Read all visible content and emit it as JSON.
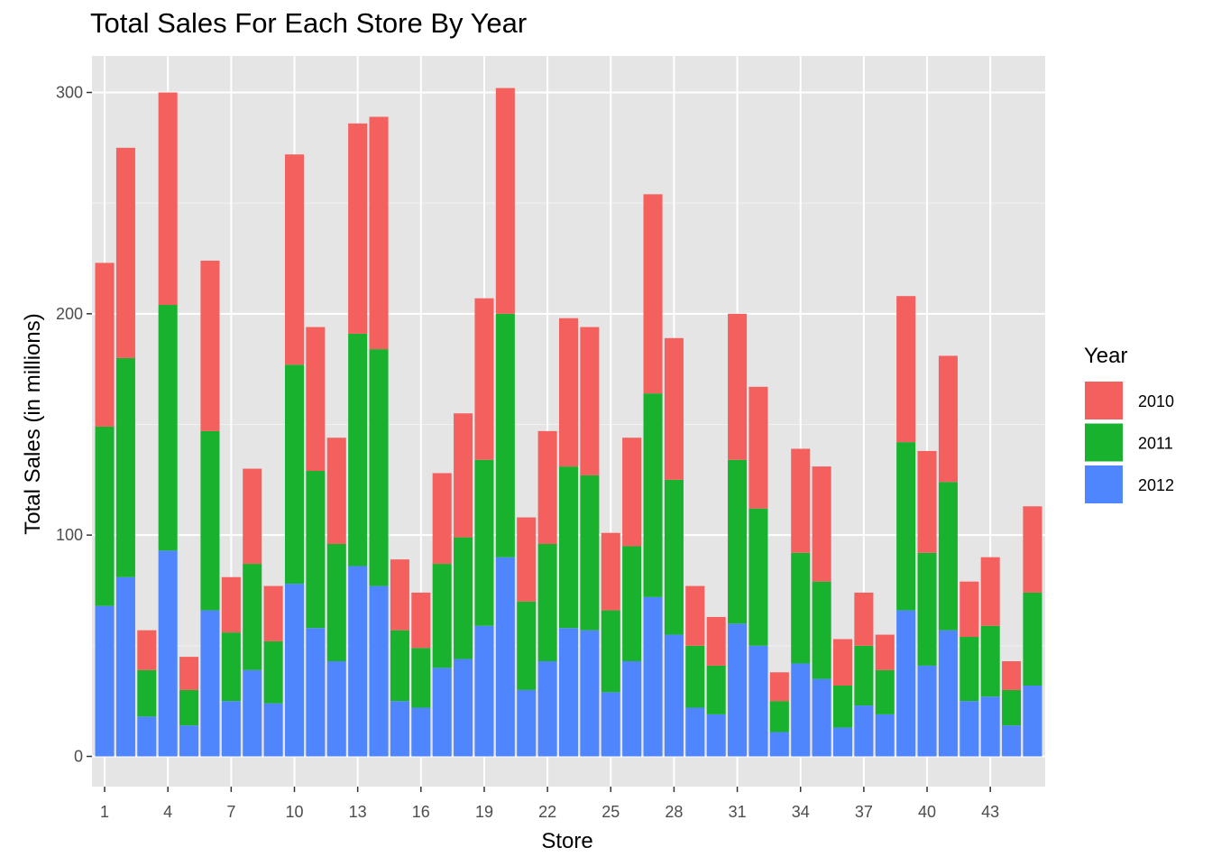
{
  "chart_data": {
    "type": "bar",
    "stacked": true,
    "title": "Total Sales For Each Store By Year",
    "xlabel": "Store",
    "ylabel": "Total Sales (in millions)",
    "ylim": [
      -14,
      322
    ],
    "y_ticks": [
      0,
      100,
      200,
      300
    ],
    "x_tick_labels": [
      "1",
      "4",
      "7",
      "10",
      "13",
      "16",
      "19",
      "22",
      "25",
      "28",
      "31",
      "34",
      "37",
      "40",
      "43"
    ],
    "categories": [
      "1",
      "2",
      "3",
      "4",
      "5",
      "6",
      "7",
      "8",
      "9",
      "10",
      "11",
      "12",
      "13",
      "14",
      "15",
      "16",
      "17",
      "18",
      "19",
      "20",
      "21",
      "22",
      "23",
      "24",
      "25",
      "26",
      "27",
      "28",
      "29",
      "30",
      "31",
      "32",
      "33",
      "34",
      "35",
      "36",
      "37",
      "38",
      "39",
      "40",
      "41",
      "42",
      "43",
      "44",
      "45"
    ],
    "grid": true,
    "legend": {
      "title": "Year",
      "position": "right"
    },
    "series": [
      {
        "name": "2012",
        "color": "#4f86fe",
        "values": [
          68,
          81,
          18,
          93,
          14,
          66,
          25,
          39,
          24,
          78,
          58,
          43,
          86,
          77,
          25,
          22,
          40,
          44,
          59,
          90,
          30,
          43,
          58,
          57,
          29,
          43,
          72,
          55,
          22,
          19,
          60,
          50,
          11,
          42,
          35,
          13,
          23,
          19,
          66,
          41,
          57,
          25,
          27,
          14,
          32
        ]
      },
      {
        "name": "2011",
        "color": "#19b22f",
        "values": [
          81,
          99,
          21,
          111,
          16,
          81,
          31,
          48,
          28,
          99,
          71,
          53,
          105,
          107,
          32,
          27,
          47,
          55,
          75,
          110,
          40,
          53,
          73,
          70,
          37,
          52,
          92,
          70,
          28,
          22,
          74,
          62,
          14,
          50,
          44,
          19,
          27,
          20,
          76,
          51,
          67,
          29,
          32,
          16,
          42
        ]
      },
      {
        "name": "2010",
        "color": "#f4605e",
        "values": [
          74,
          95,
          18,
          96,
          15,
          77,
          25,
          43,
          25,
          95,
          65,
          48,
          95,
          105,
          32,
          25,
          41,
          56,
          73,
          102,
          38,
          51,
          67,
          67,
          35,
          49,
          90,
          64,
          27,
          22,
          66,
          55,
          13,
          47,
          52,
          21,
          24,
          16,
          66,
          46,
          57,
          25,
          31,
          13,
          39
        ]
      }
    ]
  }
}
